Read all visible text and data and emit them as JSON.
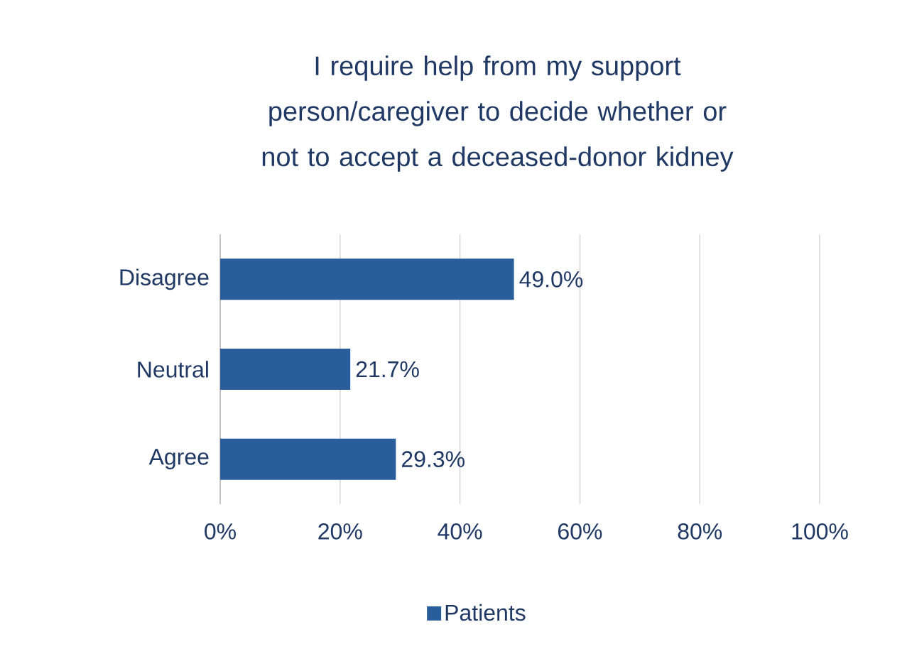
{
  "chart_data": {
    "type": "bar",
    "orientation": "horizontal",
    "title": "I require help from my support person/caregiver to decide whether or not to accept a deceased-donor kidney",
    "categories": [
      "Disagree",
      "Neutral",
      "Agree"
    ],
    "series": [
      {
        "name": "Patients",
        "color": "#2a5d9b",
        "values": [
          49.0,
          21.7,
          29.3
        ],
        "value_labels": [
          "49.0%",
          "21.7%",
          "29.3%"
        ]
      }
    ],
    "xlim": [
      0,
      100
    ],
    "xticks": [
      {
        "value": 0,
        "label": "0%"
      },
      {
        "value": 20,
        "label": "20%"
      },
      {
        "value": 40,
        "label": "40%"
      },
      {
        "value": 60,
        "label": "60%"
      },
      {
        "value": 80,
        "label": "80%"
      },
      {
        "value": 100,
        "label": "100%"
      }
    ],
    "grid": "x",
    "legend": "bottom"
  }
}
